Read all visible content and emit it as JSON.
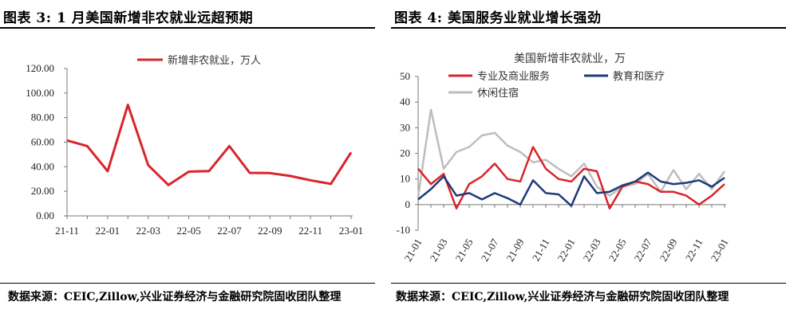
{
  "left": {
    "title": "图表 3:  1 月美国新增非农就业远超预期",
    "source": "数据来源：CEIC,Zillow,兴业证券经济与金融研究院固收团队整理"
  },
  "right": {
    "title": "图表 4:  美国服务业就业增长强劲",
    "source": "数据来源：CEIC,Zillow,兴业证券经济与金融研究院固收团队整理"
  },
  "colors": {
    "red": "#d9242b",
    "navy": "#1f3a7a",
    "gray": "#bdbdbd"
  },
  "chart_data": [
    {
      "type": "line",
      "title": "",
      "ylim": [
        0,
        120
      ],
      "yticks": [
        "0.00",
        "20.00",
        "40.00",
        "60.00",
        "80.00",
        "100.00",
        "120.00"
      ],
      "x": [
        "21-11",
        "21-12",
        "22-01",
        "22-02",
        "22-03",
        "22-04",
        "22-05",
        "22-06",
        "22-07",
        "22-08",
        "22-09",
        "22-10",
        "22-11",
        "22-12",
        "23-01"
      ],
      "xtick_labels": [
        "21-11",
        "22-01",
        "22-03",
        "22-05",
        "22-07",
        "22-09",
        "22-11",
        "23-01"
      ],
      "legend_position": "top",
      "series": [
        {
          "name": "新增非农就业，万人",
          "color": "#d9242b",
          "values": [
            61.4,
            56.8,
            36.4,
            90.4,
            41.3,
            25.1,
            36.0,
            36.5,
            56.8,
            35.0,
            34.8,
            32.5,
            29.0,
            26.0,
            51.7
          ]
        }
      ]
    },
    {
      "type": "line",
      "title": "美国新增非农就业，万",
      "ylim": [
        -10,
        50
      ],
      "yticks": [
        "-10",
        "0",
        "10",
        "20",
        "30",
        "40",
        "50"
      ],
      "x": [
        "21-01",
        "21-02",
        "21-03",
        "21-04",
        "21-05",
        "21-06",
        "21-07",
        "21-08",
        "21-09",
        "21-10",
        "21-11",
        "21-12",
        "22-01",
        "22-02",
        "22-03",
        "22-04",
        "22-05",
        "22-06",
        "22-07",
        "22-08",
        "22-09",
        "22-10",
        "22-11",
        "22-12",
        "23-01"
      ],
      "xtick_labels": [
        "21-01",
        "21-03",
        "21-05",
        "21-07",
        "21-09",
        "21-11",
        "22-01",
        "22-03",
        "22-05",
        "22-07",
        "22-09",
        "22-11",
        "23-01"
      ],
      "legend_position": "top",
      "series": [
        {
          "name": "专业及商业服务",
          "color": "#d9242b",
          "values": [
            14.0,
            8.0,
            12.0,
            -1.5,
            8.0,
            11.0,
            16.0,
            10.0,
            9.0,
            22.5,
            14.0,
            10.0,
            9.0,
            14.0,
            13.0,
            -1.5,
            7.0,
            9.0,
            8.0,
            5.0,
            5.0,
            3.5,
            0.0,
            3.5,
            8.0
          ]
        },
        {
          "name": "教育和医疗",
          "color": "#1f3a7a",
          "values": [
            2.0,
            6.0,
            11.0,
            3.5,
            4.5,
            2.0,
            4.5,
            2.5,
            0.0,
            9.5,
            4.5,
            4.0,
            -0.5,
            11.0,
            4.5,
            5.0,
            7.5,
            9.0,
            12.5,
            9.0,
            8.0,
            8.5,
            9.5,
            7.0,
            10.5
          ]
        },
        {
          "name": "休闲住宿",
          "color": "#bdbdbd",
          "values": [
            3.0,
            37.0,
            14.0,
            20.5,
            22.5,
            27.0,
            28.0,
            23.0,
            20.5,
            16.5,
            17.5,
            14.0,
            11.0,
            16.0,
            7.0,
            3.5,
            7.0,
            8.0,
            12.0,
            5.0,
            13.5,
            6.0,
            12.0,
            6.0,
            13.0
          ]
        }
      ]
    }
  ]
}
